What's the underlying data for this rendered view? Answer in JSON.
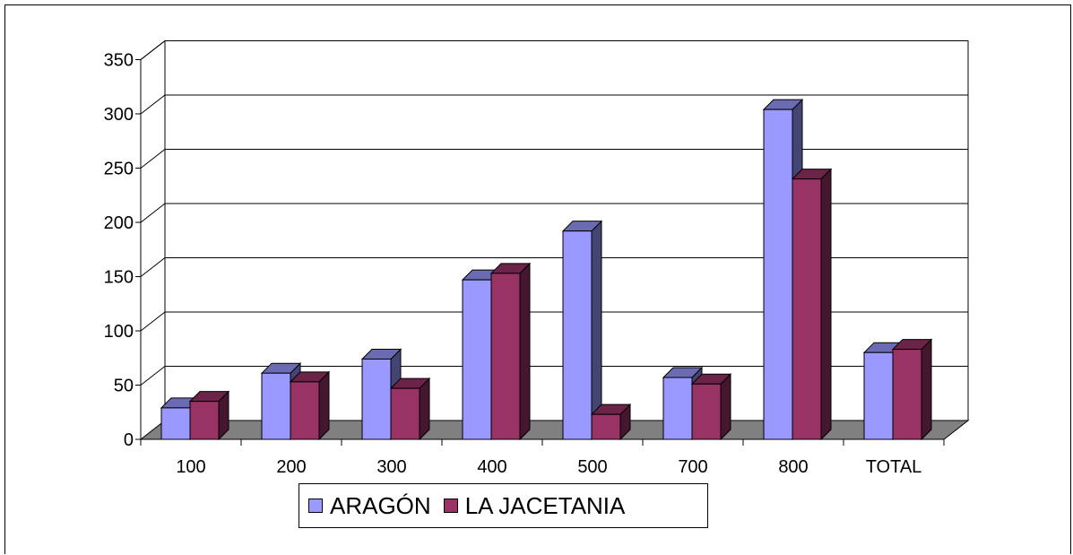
{
  "chart_data": {
    "type": "bar",
    "categories": [
      "100",
      "200",
      "300",
      "400",
      "500",
      "700",
      "800",
      "TOTAL"
    ],
    "series": [
      {
        "name": "ARAGÓN",
        "values": [
          29,
          61,
          74,
          147,
          192,
          57,
          304,
          80
        ],
        "color": "#9999ff"
      },
      {
        "name": "LA JACETANIA",
        "values": [
          35,
          53,
          47,
          153,
          23,
          51,
          240,
          83
        ],
        "color": "#993366"
      }
    ],
    "ylim": [
      0,
      350
    ],
    "yticks": [
      0,
      50,
      100,
      150,
      200,
      250,
      300,
      350
    ],
    "grid": true,
    "legend_position": "bottom",
    "three_d": true,
    "floor_color": "#808080"
  }
}
